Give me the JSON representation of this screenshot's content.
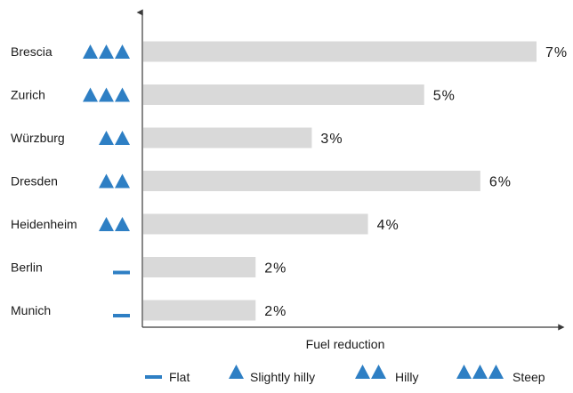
{
  "chart_data": {
    "type": "bar",
    "orientation": "horizontal",
    "categories": [
      "Brescia",
      "Zurich",
      "Würzburg",
      "Dresden",
      "Heidenheim",
      "Berlin",
      "Munich"
    ],
    "values": [
      7,
      5,
      3,
      6,
      4,
      2,
      2
    ],
    "value_labels": [
      "7%",
      "5%",
      "3%",
      "6%",
      "4%",
      "2%",
      "2%"
    ],
    "terrain": [
      "steep",
      "steep",
      "hilly",
      "hilly",
      "hilly",
      "flat",
      "flat"
    ],
    "xlabel": "Fuel reduction",
    "ylabel": "",
    "xlim": [
      0,
      8
    ],
    "grid": false,
    "legend_position": "bottom",
    "legend": [
      {
        "key": "flat",
        "label": "Flat"
      },
      {
        "key": "slightly-hilly",
        "label": "Slightly hilly"
      },
      {
        "key": "hilly",
        "label": "Hilly"
      },
      {
        "key": "steep",
        "label": "Steep"
      }
    ]
  },
  "colors": {
    "bar": "#d9d9d9",
    "icon": "#2e7fc4",
    "axis": "#3a3a3a",
    "text": "#1a1a1a"
  }
}
